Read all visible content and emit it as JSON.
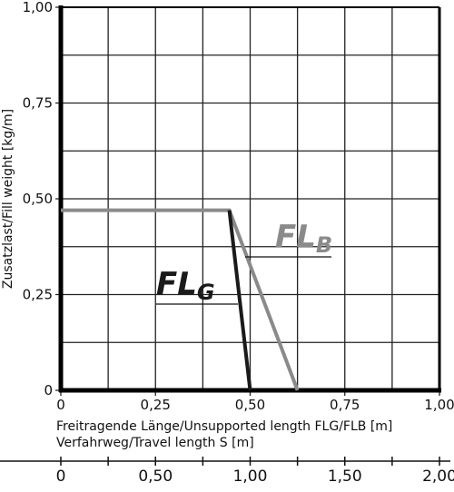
{
  "chart_data": {
    "type": "line",
    "y_label": "Zusatzlast/Fill weight [kg/m]",
    "x_label": "Freitragende Länge/Unsupported length FLG/FLB [m]",
    "x2_label": "Verfahrweg/Travel length S [m]",
    "xlim": [
      0,
      1
    ],
    "ylim": [
      0,
      1
    ],
    "xticks": [
      0,
      {
        "value": 0.25,
        "label": "0,25"
      },
      {
        "value": 0.5,
        "label": "0,50"
      },
      {
        "value": 0.75,
        "label": "0,75"
      },
      {
        "value": 1,
        "label": "1,00"
      }
    ],
    "yticks": [
      0,
      {
        "value": 0.25,
        "label": "0,25"
      },
      {
        "value": 0.5,
        "label": "0,50"
      },
      {
        "value": 0.75,
        "label": "0,75"
      },
      {
        "value": 1,
        "label": "1,00"
      }
    ],
    "x_grid": [
      0.125,
      0.375,
      0.625,
      0.875
    ],
    "y_grid": [
      0.125,
      0.375,
      0.625,
      0.875
    ],
    "grid": true,
    "x2lim": [
      0,
      2
    ],
    "x2ticks": [
      0,
      {
        "value": 0.5,
        "label": "0,50"
      },
      {
        "value": 1,
        "label": "1,00"
      },
      {
        "value": 1.5,
        "label": "1,50"
      },
      {
        "value": 2,
        "label": "2,00"
      }
    ],
    "x2minorticks": [
      0.25,
      0.75,
      1.25,
      1.75
    ],
    "series": [
      {
        "name": "FL",
        "subscript": "B",
        "color": "#8a8a8a",
        "x": [
          0,
          0.445,
          0.625
        ],
        "values": [
          0.47,
          0.47,
          0
        ]
      },
      {
        "name": "FL",
        "subscript": "G",
        "color": "#1a1a1a",
        "x": [
          0.445,
          0.5
        ],
        "values": [
          0.47,
          0
        ]
      }
    ]
  }
}
